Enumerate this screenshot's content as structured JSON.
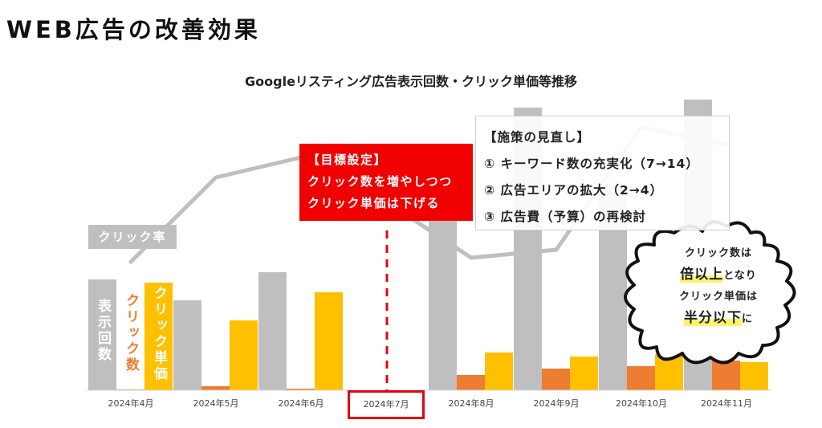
{
  "page": {
    "title": "WEB広告の改善効果"
  },
  "chart_data": {
    "type": "bar",
    "title": "Googleリスティング広告表示回数・クリック単価等推移",
    "xlabel": "",
    "ylabel": "",
    "grid": false,
    "categories": [
      "2024年4月",
      "2024年5月",
      "2024年6月",
      "2024年7月",
      "2024年8月",
      "2024年9月",
      "2024年10月",
      "2024年11月"
    ],
    "highlighted_category": "2024年7月",
    "series": [
      {
        "name": "表示回数",
        "type": "bar",
        "color": "#bfbfbf",
        "values": [
          138,
          112,
          147,
          null,
          280,
          352,
          255,
          362
        ]
      },
      {
        "name": "クリック数",
        "type": "bar",
        "color": "#ed7d31",
        "values": [
          1,
          5,
          2,
          null,
          19,
          27,
          30,
          37
        ]
      },
      {
        "name": "クリック単価",
        "type": "bar",
        "color": "#ffc000",
        "values": [
          134,
          87,
          122,
          null,
          47,
          42,
          45,
          35
        ]
      },
      {
        "name": "クリック率",
        "type": "line",
        "color": "#bfbfbf",
        "values": [
          160,
          265,
          290,
          235,
          165,
          175,
          328,
          305
        ]
      }
    ],
    "note": "Values are relative pixel heights read off an unlabeled axis"
  },
  "legend": {
    "ctr_label": "クリック率",
    "impressions_label": "表示回数",
    "clicks_label": "クリック数",
    "cpc_label": "クリック単価"
  },
  "goal_box": {
    "heading": "【目標設定】",
    "line1": "クリック数を増やしつつ",
    "line2": "クリック単価は下げる"
  },
  "review_box": {
    "heading": "【施策の見直し】",
    "items": [
      "① キーワード数の充実化（7→14）",
      "② 広告エリアの拡大（2→4）",
      "③ 広告費（予算）の再検討"
    ]
  },
  "callout": {
    "line1": "クリック数は",
    "line2_highlight": "倍以上",
    "line2_rest": "となり",
    "line3": "クリック単価は",
    "line4_highlight": "半分以下",
    "line4_rest": "に"
  },
  "colors": {
    "impressions": "#bfbfbf",
    "clicks": "#ed7d31",
    "cpc": "#ffc000",
    "accent_red": "#f00000",
    "highlight_yellow": "#fff36b"
  }
}
